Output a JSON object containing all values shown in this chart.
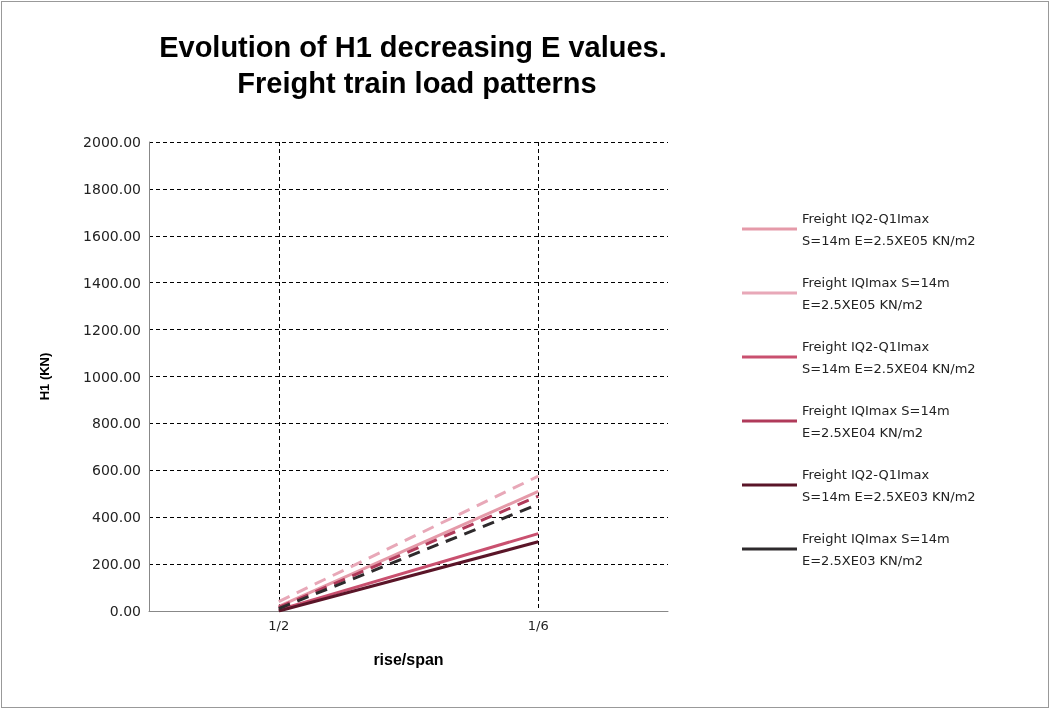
{
  "chart_data": {
    "type": "line",
    "title": "Evolution of H1 decreasing E values. Freight train load patterns",
    "xlabel": "rise/span",
    "ylabel": "H1 (KN)",
    "categories": [
      "1/2",
      "1/6"
    ],
    "series": [
      {
        "name": "Freight IQ2-Q1Imax S=14m E=2.5XE05 KN/m2",
        "color": "#e59aa9",
        "line_style": "solid",
        "values": [
          20,
          510
        ]
      },
      {
        "name": "Freight IQImax S=14m E=2.5XE05 KN/m2",
        "color": "#e8a8b8",
        "line_style": "dashed",
        "values": [
          40,
          575
        ]
      },
      {
        "name": "Freight IQ2-Q1Imax S=14m E=2.5XE04 KN/m2",
        "color": "#c9506f",
        "line_style": "solid",
        "values": [
          5,
          330
        ]
      },
      {
        "name": "Freight IQImax S=14m E=2.5XE04 KN/m2",
        "color": "#b03a5a",
        "line_style": "dashed",
        "values": [
          15,
          490
        ]
      },
      {
        "name": "Freight IQ2-Q1Imax S=14m E=2.5XE03 KN/m2",
        "color": "#5a1528",
        "line_style": "solid",
        "values": [
          0,
          295
        ]
      },
      {
        "name": "Freight IQImax S=14m E=2.5XE03 KN/m2",
        "color": "#2e2a2c",
        "line_style": "dashed",
        "values": [
          10,
          455
        ]
      }
    ],
    "ylim": [
      0,
      2000
    ],
    "yticks": [
      {
        "value": 0,
        "label": "0.00"
      },
      {
        "value": 200,
        "label": "200.00"
      },
      {
        "value": 400,
        "label": "400.00"
      },
      {
        "value": 600,
        "label": "600.00"
      },
      {
        "value": 800,
        "label": "800.00"
      },
      {
        "value": 1000,
        "label": "1000.00"
      },
      {
        "value": 1200,
        "label": "1200.00"
      },
      {
        "value": 1400,
        "label": "1400.00"
      },
      {
        "value": 1600,
        "label": "1600.00"
      },
      {
        "value": 1800,
        "label": "1800.00"
      },
      {
        "value": 2000,
        "label": "2000.00"
      }
    ],
    "grid": true,
    "legend": "right",
    "marker": "none"
  }
}
